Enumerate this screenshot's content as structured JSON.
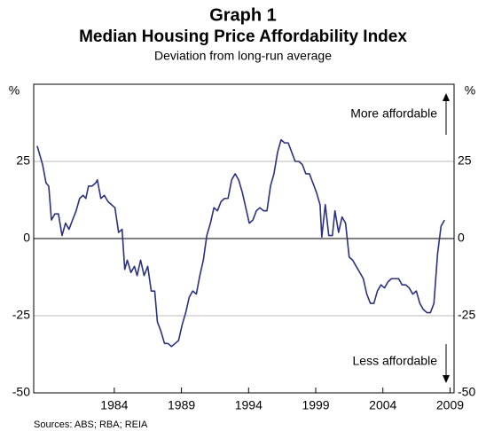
{
  "chart_data": {
    "type": "line",
    "title": "Graph 1",
    "subtitle": "Median Housing Price Affordability Index",
    "description": "Deviation from long-run average",
    "y_label": "%",
    "y2_label": "%",
    "annotations": [
      "More affordable",
      "Less affordable"
    ],
    "source": "Sources: ABS; RBA; REIA",
    "xlim": [
      1978,
      2009.3
    ],
    "xticks": [
      1984,
      1989,
      1994,
      1999,
      2004,
      2009
    ],
    "ylim": [
      -50,
      50
    ],
    "yticks": [
      -50,
      -25,
      0,
      25
    ],
    "y2lim": [
      -50,
      50
    ],
    "y2ticks": [
      -50,
      -25,
      0,
      25
    ],
    "grid": true,
    "series": [
      {
        "color": "#2b3180",
        "x": [
          1978.26,
          1978.66,
          1978.92,
          1979.12,
          1979.32,
          1979.58,
          1979.84,
          1980.11,
          1980.37,
          1980.63,
          1980.89,
          1981.16,
          1981.42,
          1981.68,
          1981.88,
          1982.08,
          1982.34,
          1982.61,
          1982.74,
          1983.0,
          1983.26,
          1983.53,
          1983.79,
          1984.05,
          1984.32,
          1984.58,
          1984.78,
          1984.97,
          1985.24,
          1985.5,
          1985.7,
          1985.96,
          1986.22,
          1986.49,
          1986.75,
          1987.01,
          1987.21,
          1987.47,
          1987.74,
          1988.0,
          1988.26,
          1988.53,
          1988.79,
          1989.05,
          1989.32,
          1989.58,
          1989.84,
          1990.11,
          1990.37,
          1990.63,
          1990.89,
          1991.16,
          1991.42,
          1991.68,
          1991.95,
          1992.21,
          1992.47,
          1992.74,
          1993.0,
          1993.26,
          1993.53,
          1993.79,
          1994.05,
          1994.32,
          1994.58,
          1994.84,
          1995.11,
          1995.37,
          1995.63,
          1995.89,
          1996.16,
          1996.42,
          1996.68,
          1996.95,
          1997.21,
          1997.47,
          1997.74,
          1998.0,
          1998.26,
          1998.53,
          1998.79,
          1999.05,
          1999.32,
          1999.45,
          1999.71,
          1999.97,
          2000.24,
          2000.43,
          2000.7,
          2000.96,
          2001.22,
          2001.49,
          2001.75,
          2002.01,
          2002.28,
          2002.54,
          2002.8,
          2003.07,
          2003.33,
          2003.59,
          2003.86,
          2004.12,
          2004.38,
          2004.64,
          2004.91,
          2005.17,
          2005.43,
          2005.7,
          2005.96,
          2006.22,
          2006.49,
          2006.75,
          2007.01,
          2007.28,
          2007.54,
          2007.8,
          2008.07,
          2008.33,
          2008.59
        ],
        "values": [
          30,
          24,
          18,
          17,
          6,
          8,
          8,
          1,
          5,
          3,
          6,
          9,
          13,
          14,
          13,
          17,
          17,
          18,
          19,
          13,
          14,
          12,
          11,
          10,
          2,
          3,
          -10,
          -7,
          -11,
          -9,
          -12,
          -7,
          -12,
          -9,
          -17,
          -17,
          -27,
          -30,
          -34,
          -34,
          -35,
          -34,
          -33,
          -28,
          -24,
          -19,
          -17,
          -18,
          -12,
          -7,
          1,
          5,
          10,
          9,
          12,
          13,
          13,
          19,
          21,
          19,
          15,
          10,
          5,
          6,
          9,
          10,
          9,
          9,
          17,
          21,
          28,
          32,
          31,
          31,
          28,
          25,
          25,
          24,
          21,
          21,
          18,
          15,
          11,
          0.5,
          11,
          1,
          1,
          9,
          2,
          7,
          5,
          -6,
          -7,
          -9,
          -11,
          -13,
          -18,
          -21,
          -21,
          -17,
          -15,
          -16,
          -14,
          -13,
          -13,
          -13,
          -15,
          -15,
          -16,
          -18,
          -17,
          -21,
          -23,
          -24,
          -24,
          -21,
          -5,
          4,
          6
        ]
      }
    ]
  }
}
